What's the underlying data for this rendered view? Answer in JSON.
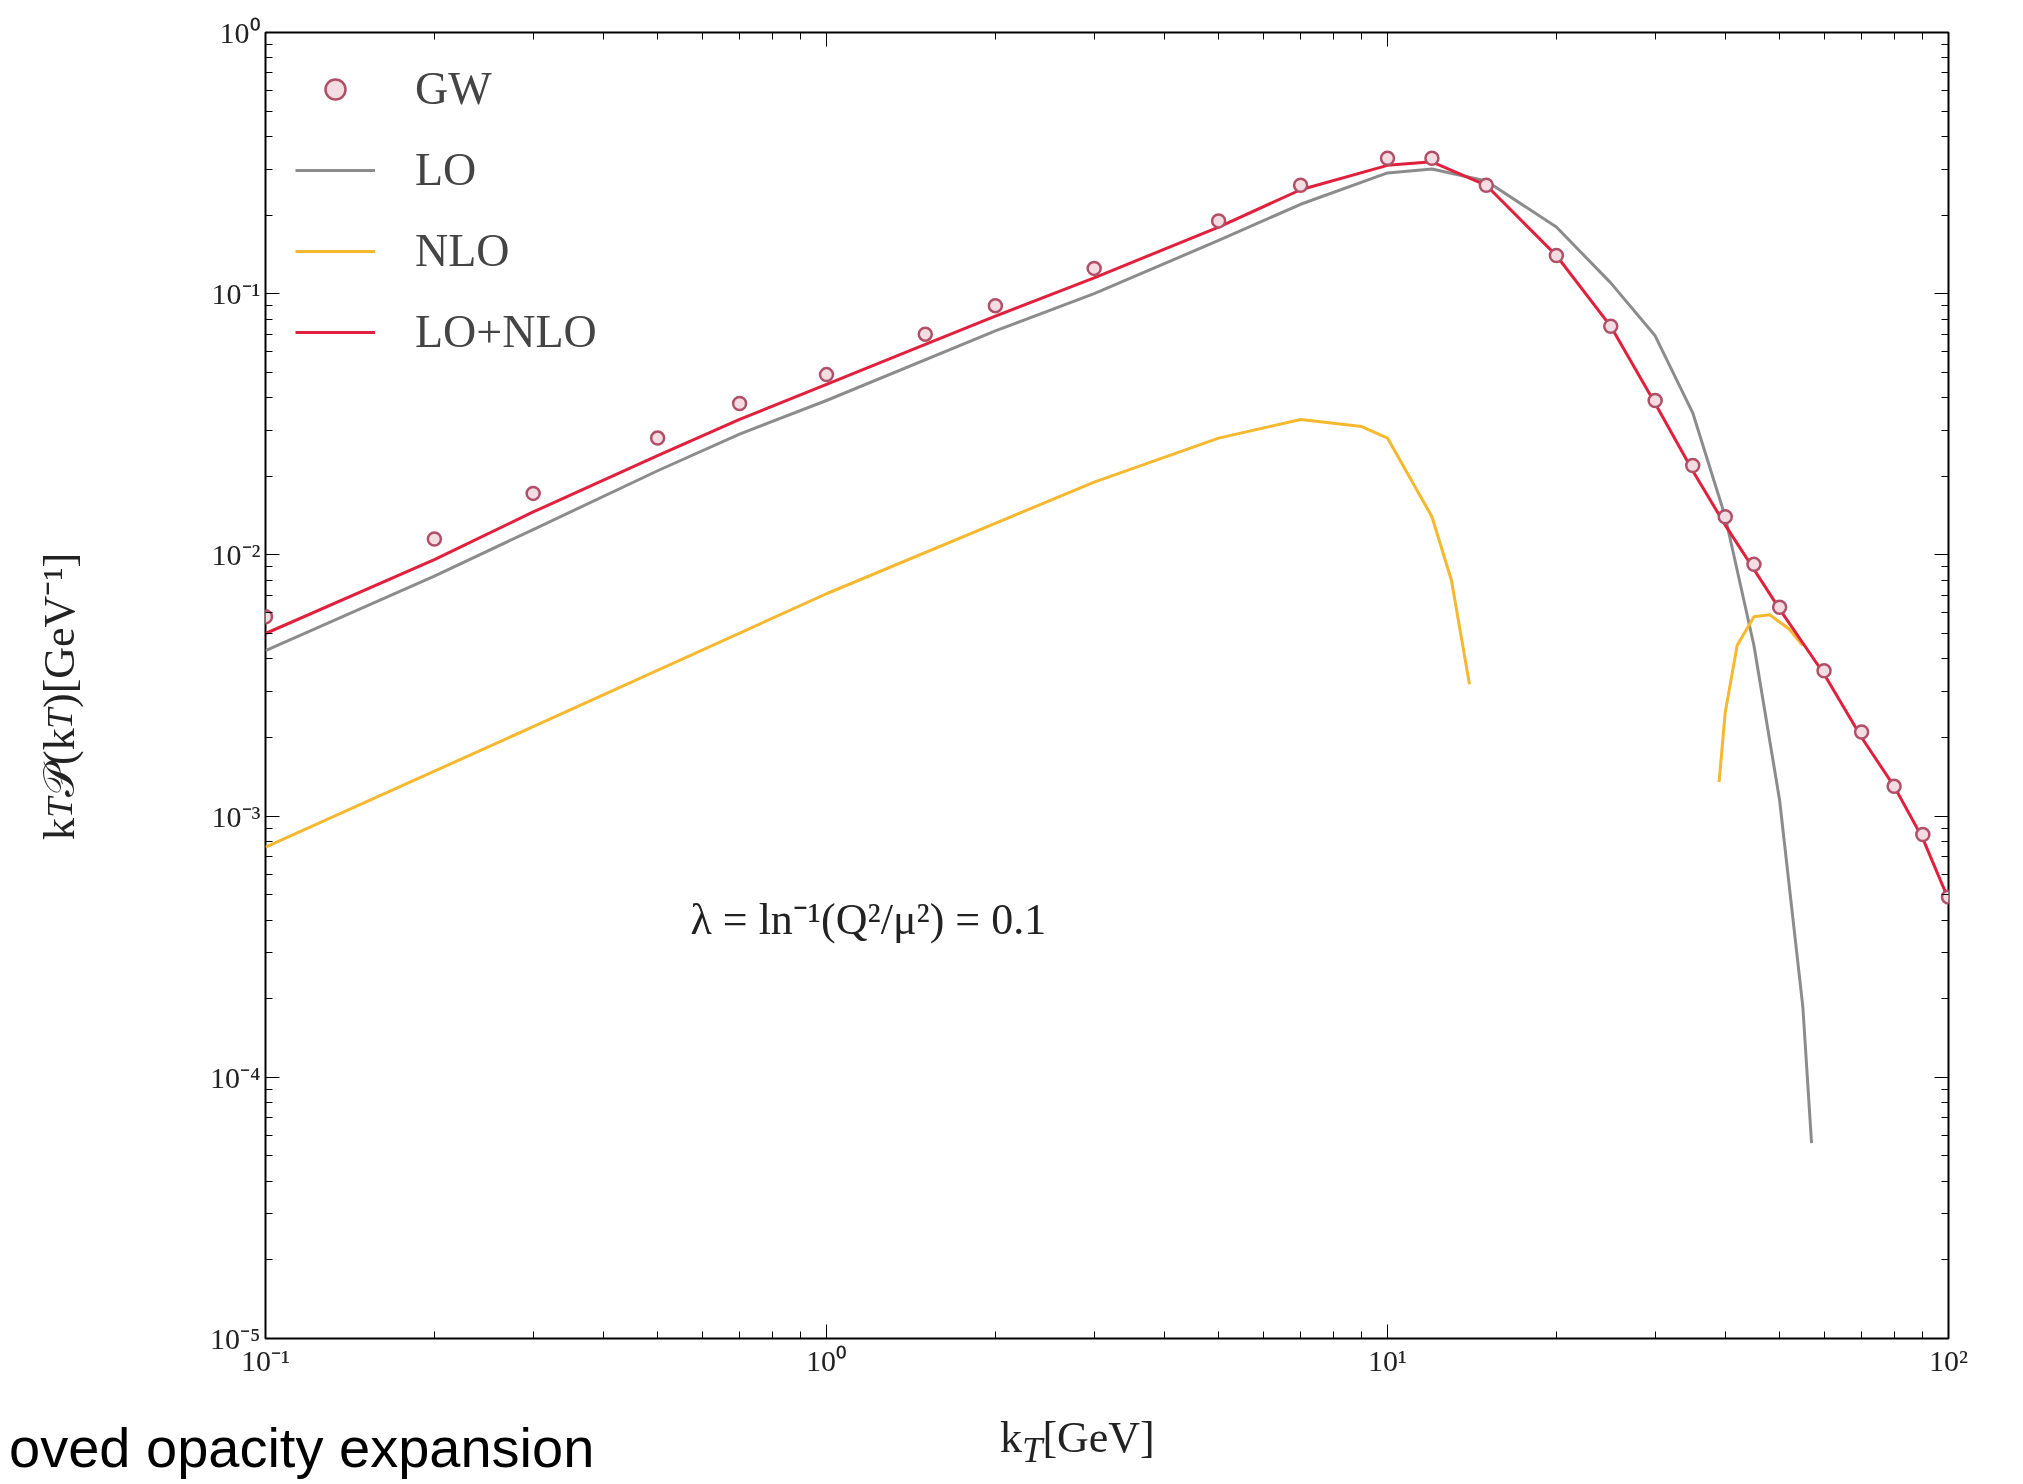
{
  "chart_data": {
    "type": "line",
    "xlabel": "k$_{T}$[GeV]",
    "ylabel": "k$_{T}$𝒫(k$_{T}$)[GeV⁻¹]",
    "log": "xy",
    "grid": false,
    "legend": "top left",
    "xlim": [
      0.1,
      100
    ],
    "ylim": [
      1e-05,
      1
    ],
    "xticks": [
      {
        "value": 0.1,
        "label": "10⁻¹"
      },
      {
        "value": 1,
        "label": "10⁰"
      },
      {
        "value": 10,
        "label": "10¹"
      },
      {
        "value": 100,
        "label": "10²"
      }
    ],
    "yticks": [
      {
        "value": 1e-05,
        "label": "10⁻⁵"
      },
      {
        "value": 0.0001,
        "label": "10⁻⁴"
      },
      {
        "value": 0.001,
        "label": "10⁻³"
      },
      {
        "value": 0.01,
        "label": "10⁻²"
      },
      {
        "value": 0.1,
        "label": "10⁻¹"
      },
      {
        "value": 1,
        "label": "10⁰"
      }
    ],
    "series": [
      {
        "name": "GW",
        "type": "scatter",
        "marker": "circle",
        "color": "#b05068",
        "x": [
          0.1,
          0.2,
          0.3,
          0.5,
          0.7,
          1,
          1.5,
          2,
          3,
          5,
          7,
          10,
          12,
          15,
          20,
          25,
          30,
          35,
          40,
          45,
          50,
          60,
          70,
          80,
          90,
          100
        ],
        "values": [
          0.0058,
          0.0115,
          0.0172,
          0.028,
          0.038,
          0.049,
          0.07,
          0.09,
          0.125,
          0.19,
          0.26,
          0.33,
          0.33,
          0.26,
          0.14,
          0.075,
          0.039,
          0.022,
          0.014,
          0.0092,
          0.0063,
          0.0036,
          0.0021,
          0.0013,
          0.00085,
          0.00049
        ]
      },
      {
        "name": "LO",
        "color": "#8c8c8c",
        "x": [
          0.1,
          0.2,
          0.3,
          0.5,
          0.7,
          1,
          2,
          3,
          5,
          7,
          10,
          12,
          15,
          20,
          25,
          30,
          35,
          40,
          45,
          50,
          55,
          57
        ],
        "values": [
          0.0043,
          0.0083,
          0.0125,
          0.021,
          0.029,
          0.039,
          0.072,
          0.1,
          0.16,
          0.22,
          0.29,
          0.3,
          0.27,
          0.18,
          0.11,
          0.069,
          0.035,
          0.014,
          0.0045,
          0.00115,
          0.000186,
          5.6e-05
        ]
      },
      {
        "name": "NLO",
        "color": "#f5b82e",
        "x": [
          0.1,
          0.3,
          1,
          3,
          5,
          7,
          9,
          10,
          12,
          13,
          14,
          20,
          39,
          40,
          42,
          45,
          48,
          52,
          55
        ],
        "values": [
          0.00076,
          0.0022,
          0.0071,
          0.019,
          0.028,
          0.033,
          0.031,
          0.028,
          0.014,
          0.008,
          0.0032,
          null,
          0.00135,
          0.0025,
          0.0045,
          0.0058,
          0.0059,
          0.0052,
          0.0045
        ]
      },
      {
        "name": "LO+NLO",
        "color": "#e0203c",
        "x": [
          0.1,
          0.2,
          0.3,
          0.5,
          0.7,
          1,
          1.5,
          2,
          3,
          5,
          7,
          10,
          12,
          15,
          20,
          25,
          30,
          35,
          40,
          45,
          50,
          60,
          70,
          80,
          90,
          100
        ],
        "values": [
          0.005,
          0.0096,
          0.0146,
          0.024,
          0.033,
          0.045,
          0.064,
          0.082,
          0.115,
          0.18,
          0.25,
          0.31,
          0.32,
          0.26,
          0.14,
          0.075,
          0.038,
          0.021,
          0.013,
          0.0088,
          0.0062,
          0.0035,
          0.002,
          0.0013,
          0.00082,
          0.00048
        ]
      }
    ],
    "annotations": [
      "λ = ln⁻¹(Q²/μ²) = 0.1",
      "oved opacity expansion"
    ]
  }
}
